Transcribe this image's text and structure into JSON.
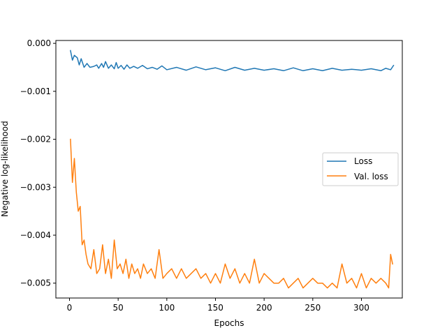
{
  "chart_data": {
    "type": "line",
    "title": "",
    "xlabel": "Epochs",
    "ylabel": "Negative log-likelihood",
    "xlim": [
      -14,
      342
    ],
    "ylim": [
      -0.00531,
      6e-05
    ],
    "xticks": [
      0,
      50,
      100,
      150,
      200,
      250,
      300
    ],
    "xtick_labels": [
      "0",
      "50",
      "100",
      "150",
      "200",
      "250",
      "300"
    ],
    "yticks": [
      0.0,
      -0.001,
      -0.002,
      -0.003,
      -0.004,
      -0.005
    ],
    "ytick_labels": [
      "0.000",
      "−0.001",
      "−0.002",
      "−0.003",
      "−0.004",
      "−0.005"
    ],
    "grid": false,
    "legend_position": "center-right",
    "series": [
      {
        "name": "Loss",
        "color": "#1f77b4",
        "x": [
          1,
          3,
          5,
          8,
          10,
          12,
          15,
          18,
          21,
          25,
          28,
          30,
          33,
          35,
          37,
          40,
          43,
          46,
          48,
          50,
          53,
          56,
          59,
          62,
          66,
          70,
          75,
          80,
          85,
          90,
          95,
          100,
          110,
          120,
          130,
          140,
          150,
          160,
          170,
          180,
          190,
          200,
          210,
          220,
          230,
          240,
          250,
          260,
          270,
          280,
          290,
          300,
          310,
          320,
          325,
          330,
          333
        ],
        "y": [
          -0.00015,
          -0.00035,
          -0.00025,
          -0.0003,
          -0.00045,
          -0.00032,
          -0.0005,
          -0.00042,
          -0.0005,
          -0.00048,
          -0.00045,
          -0.00052,
          -0.00042,
          -0.0005,
          -0.00038,
          -0.00052,
          -0.00045,
          -0.00053,
          -0.0004,
          -0.00052,
          -0.00046,
          -0.00054,
          -0.00045,
          -0.00052,
          -0.00048,
          -0.00052,
          -0.00046,
          -0.00053,
          -0.0005,
          -0.00054,
          -0.00047,
          -0.00055,
          -0.0005,
          -0.00056,
          -0.00049,
          -0.00055,
          -0.00051,
          -0.00057,
          -0.0005,
          -0.00056,
          -0.00052,
          -0.00056,
          -0.00053,
          -0.00057,
          -0.00051,
          -0.00057,
          -0.00053,
          -0.00057,
          -0.00052,
          -0.00056,
          -0.00054,
          -0.00056,
          -0.00053,
          -0.00057,
          -0.00052,
          -0.00055,
          -0.00046
        ]
      },
      {
        "name": "Val. loss",
        "color": "#ff7f0e",
        "x": [
          1,
          3,
          5,
          7,
          9,
          11,
          13,
          15,
          17,
          19,
          22,
          25,
          28,
          31,
          34,
          37,
          40,
          43,
          46,
          49,
          52,
          55,
          58,
          61,
          64,
          67,
          70,
          73,
          76,
          80,
          84,
          88,
          92,
          96,
          100,
          105,
          110,
          115,
          120,
          125,
          130,
          135,
          140,
          145,
          150,
          155,
          160,
          165,
          170,
          175,
          180,
          185,
          190,
          195,
          200,
          205,
          210,
          215,
          220,
          225,
          230,
          235,
          240,
          245,
          250,
          255,
          260,
          265,
          270,
          275,
          280,
          285,
          290,
          295,
          300,
          305,
          310,
          315,
          320,
          325,
          328,
          330,
          332
        ],
        "y": [
          -0.002,
          -0.0029,
          -0.0024,
          -0.0031,
          -0.0035,
          -0.0034,
          -0.0042,
          -0.0041,
          -0.0044,
          -0.0046,
          -0.0047,
          -0.0043,
          -0.0048,
          -0.0047,
          -0.0042,
          -0.0048,
          -0.0045,
          -0.0049,
          -0.0041,
          -0.0047,
          -0.0046,
          -0.0048,
          -0.0045,
          -0.0049,
          -0.0046,
          -0.0048,
          -0.0047,
          -0.0049,
          -0.0046,
          -0.0048,
          -0.0047,
          -0.0049,
          -0.0043,
          -0.0049,
          -0.0048,
          -0.0047,
          -0.0049,
          -0.0047,
          -0.0049,
          -0.0048,
          -0.0047,
          -0.0049,
          -0.0048,
          -0.005,
          -0.0048,
          -0.005,
          -0.0046,
          -0.0049,
          -0.0047,
          -0.005,
          -0.0048,
          -0.005,
          -0.0045,
          -0.005,
          -0.0048,
          -0.0049,
          -0.005,
          -0.005,
          -0.0049,
          -0.0051,
          -0.005,
          -0.0049,
          -0.0051,
          -0.005,
          -0.0049,
          -0.005,
          -0.005,
          -0.0051,
          -0.005,
          -0.0051,
          -0.0046,
          -0.005,
          -0.0049,
          -0.0051,
          -0.0048,
          -0.0051,
          -0.0049,
          -0.005,
          -0.0049,
          -0.005,
          -0.0051,
          -0.0044,
          -0.0046
        ]
      }
    ]
  }
}
